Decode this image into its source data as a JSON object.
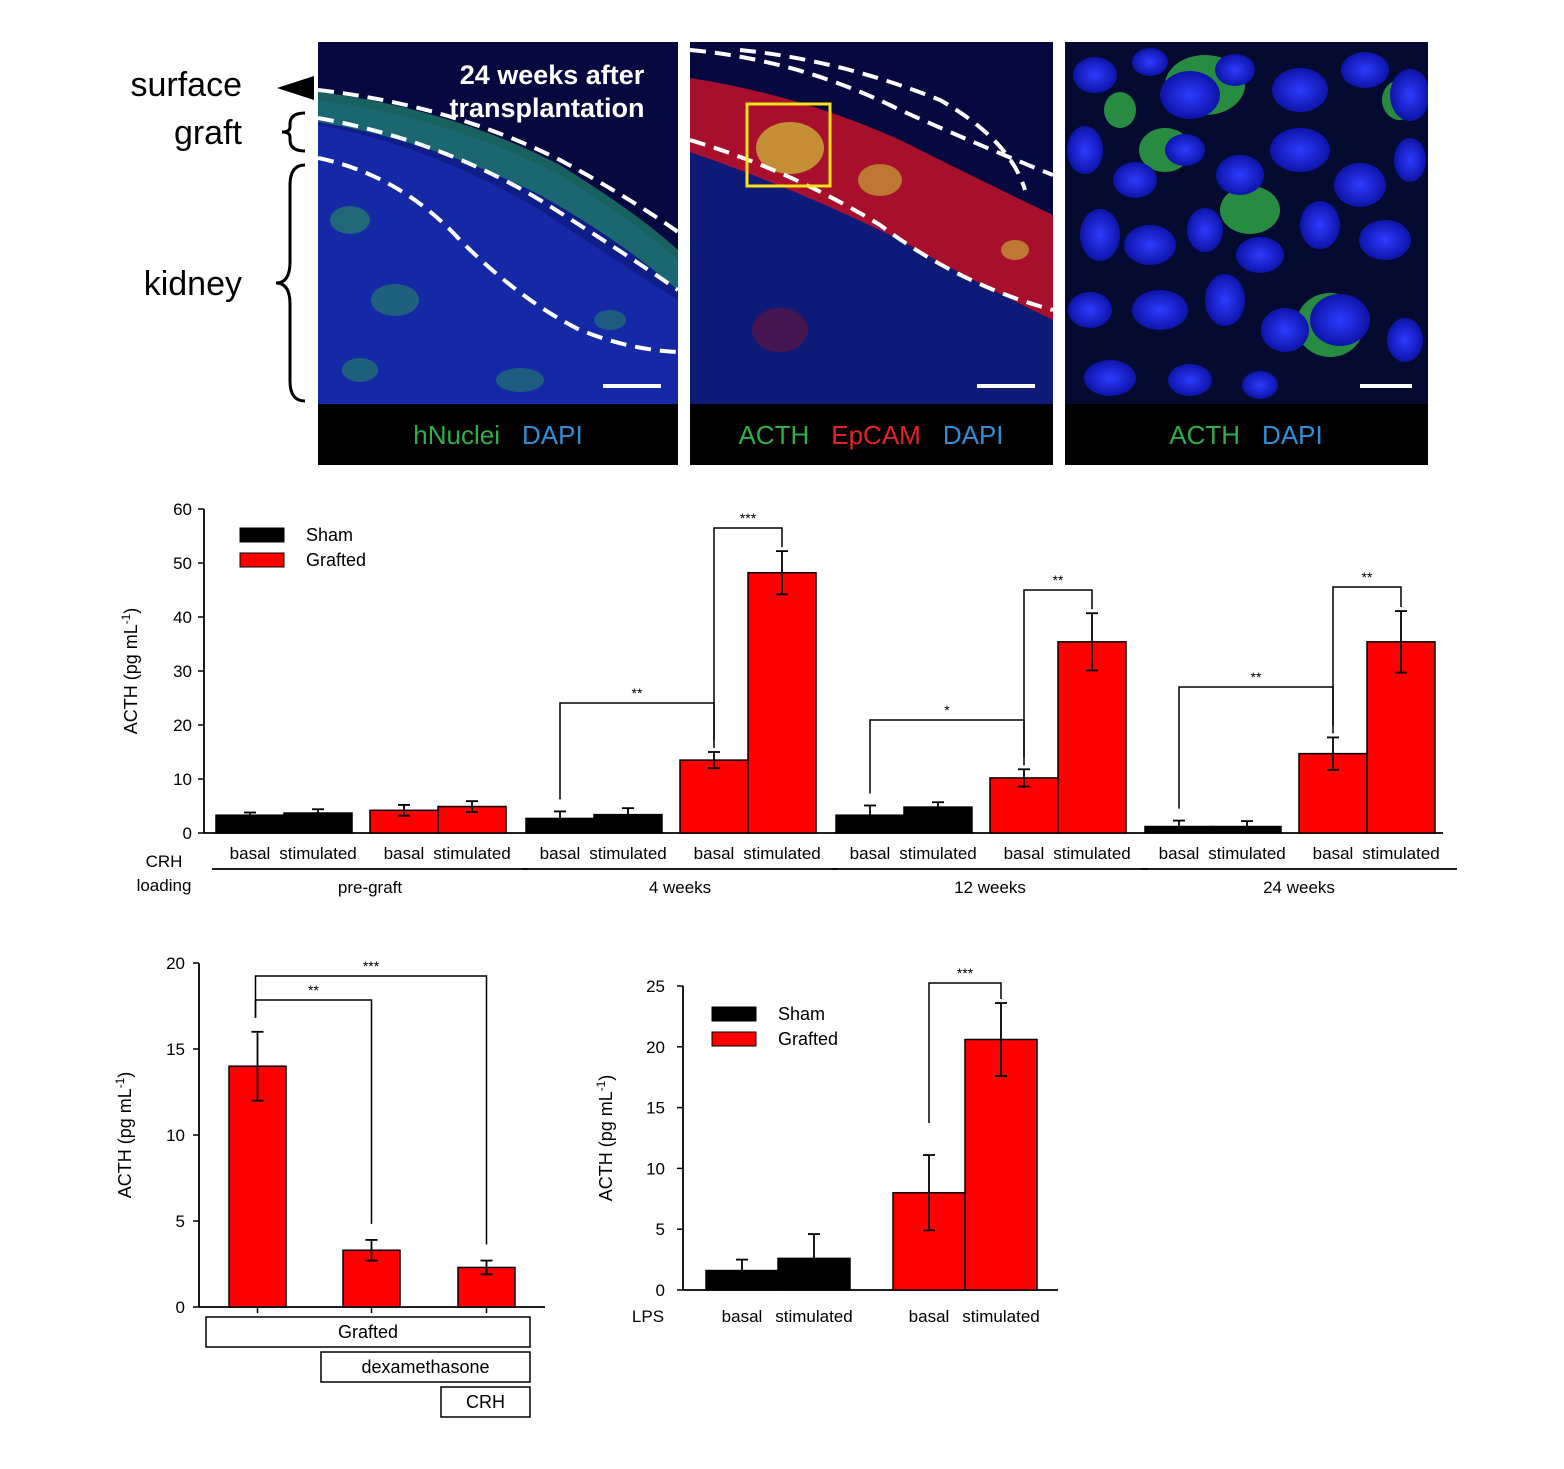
{
  "micrographs": {
    "side_labels": {
      "surface": "surface",
      "graft": "graft",
      "kidney": "kidney"
    },
    "panel1": {
      "overlay_title_line1": "24 weeks after",
      "overlay_title_line2": "transplantation",
      "caption": [
        {
          "text": "hNuclei",
          "color": "#2fae4a"
        },
        {
          "text": "DAPI",
          "color": "#2f8fd6"
        }
      ]
    },
    "panel2": {
      "caption": [
        {
          "text": "ACTH",
          "color": "#2fae4a"
        },
        {
          "text": "EpCAM",
          "color": "#e8202a"
        },
        {
          "text": "DAPI",
          "color": "#2f8fd6"
        }
      ]
    },
    "panel3": {
      "caption": [
        {
          "text": "ACTH",
          "color": "#2fae4a"
        },
        {
          "text": "DAPI",
          "color": "#2f8fd6"
        }
      ]
    }
  },
  "colors": {
    "sham": "#000000",
    "grafted": "#ff0000",
    "cyan_label": "#2f8fd6",
    "green_label": "#2fae4a",
    "red_label": "#e8202a",
    "roi_box": "#f5e21a"
  },
  "chart_data": [
    {
      "type": "bar",
      "ylabel": "ACTH (pg mL-1)",
      "ylabel_main": "ACTH (pg mL",
      "ylabel_sup": "-1",
      "ylabel_end": ")",
      "ylim": [
        0,
        60
      ],
      "yticks": [
        0,
        10,
        20,
        30,
        40,
        50,
        60
      ],
      "row_label_line1": "CRH",
      "row_label_line2": "loading",
      "legend": {
        "position": "top-left",
        "entries": [
          "Sham",
          "Grafted"
        ]
      },
      "groups": [
        {
          "label": "pre-graft",
          "bars": [
            {
              "series": "Sham",
              "condition": "basal",
              "value": 3.3,
              "error": 0.5
            },
            {
              "series": "Sham",
              "condition": "stimulated",
              "value": 3.7,
              "error": 0.7
            },
            {
              "series": "Grafted",
              "condition": "basal",
              "value": 4.2,
              "error": 1.0
            },
            {
              "series": "Grafted",
              "condition": "stimulated",
              "value": 4.9,
              "error": 1.0
            }
          ]
        },
        {
          "label": "4 weeks",
          "bars": [
            {
              "series": "Sham",
              "condition": "basal",
              "value": 2.7,
              "error": 1.3
            },
            {
              "series": "Sham",
              "condition": "stimulated",
              "value": 3.4,
              "error": 1.2
            },
            {
              "series": "Grafted",
              "condition": "basal",
              "value": 13.5,
              "error": 1.5
            },
            {
              "series": "Grafted",
              "condition": "stimulated",
              "value": 48.2,
              "error": 4.0
            }
          ]
        },
        {
          "label": "12 weeks",
          "bars": [
            {
              "series": "Sham",
              "condition": "basal",
              "value": 3.3,
              "error": 1.8
            },
            {
              "series": "Sham",
              "condition": "stimulated",
              "value": 4.8,
              "error": 0.9
            },
            {
              "series": "Grafted",
              "condition": "basal",
              "value": 10.2,
              "error": 1.6
            },
            {
              "series": "Grafted",
              "condition": "stimulated",
              "value": 35.4,
              "error": 5.3
            }
          ]
        },
        {
          "label": "24 weeks",
          "bars": [
            {
              "series": "Sham",
              "condition": "basal",
              "value": 1.2,
              "error": 1.1
            },
            {
              "series": "Sham",
              "condition": "stimulated",
              "value": 1.2,
              "error": 1.0
            },
            {
              "series": "Grafted",
              "condition": "basal",
              "value": 14.7,
              "error": 3.0
            },
            {
              "series": "Grafted",
              "condition": "stimulated",
              "value": 35.4,
              "error": 5.7
            }
          ]
        }
      ],
      "significance": [
        {
          "group": 1,
          "from_bar": 0,
          "to_bar": 2,
          "label": "**"
        },
        {
          "group": 1,
          "from_bar": 2,
          "to_bar": 3,
          "label": "***"
        },
        {
          "group": 2,
          "from_bar": 0,
          "to_bar": 2,
          "label": "*"
        },
        {
          "group": 2,
          "from_bar": 2,
          "to_bar": 3,
          "label": "**"
        },
        {
          "group": 3,
          "from_bar": 0,
          "to_bar": 2,
          "label": "**"
        },
        {
          "group": 3,
          "from_bar": 2,
          "to_bar": 3,
          "label": "**"
        }
      ]
    },
    {
      "type": "bar",
      "ylabel": "ACTH (pg mL-1)",
      "ylabel_main": "ACTH (pg mL",
      "ylabel_sup": "-1",
      "ylabel_end": ")",
      "ylim": [
        0,
        20
      ],
      "yticks": [
        0,
        5,
        10,
        15,
        20
      ],
      "bars": [
        {
          "series": "Grafted",
          "value": 14.0,
          "error": 2.0
        },
        {
          "series": "Grafted",
          "value": 3.3,
          "error": 0.6
        },
        {
          "series": "Grafted",
          "value": 2.3,
          "error": 0.4
        }
      ],
      "treatment_boxes": [
        "Grafted",
        "dexamethasone",
        "CRH"
      ],
      "significance": [
        {
          "from_bar": 0,
          "to_bar": 1,
          "label": "**"
        },
        {
          "from_bar": 0,
          "to_bar": 2,
          "label": "***"
        }
      ]
    },
    {
      "type": "bar",
      "ylabel": "ACTH (pg mL-1)",
      "ylabel_main": "ACTH (pg mL",
      "ylabel_sup": "-1",
      "ylabel_end": ")",
      "ylim": [
        0,
        25
      ],
      "yticks": [
        0,
        5,
        10,
        15,
        20,
        25
      ],
      "row_label": "LPS",
      "legend": {
        "position": "top-left",
        "entries": [
          "Sham",
          "Grafted"
        ]
      },
      "bars": [
        {
          "series": "Sham",
          "condition": "basal",
          "value": 1.6,
          "error": 0.9
        },
        {
          "series": "Sham",
          "condition": "stimulated",
          "value": 2.6,
          "error": 2.0
        },
        {
          "series": "Grafted",
          "condition": "basal",
          "value": 8.0,
          "error": 3.1
        },
        {
          "series": "Grafted",
          "condition": "stimulated",
          "value": 20.6,
          "error": 3.0
        }
      ],
      "significance": [
        {
          "from_bar": 2,
          "to_bar": 3,
          "label": "***"
        }
      ]
    }
  ]
}
